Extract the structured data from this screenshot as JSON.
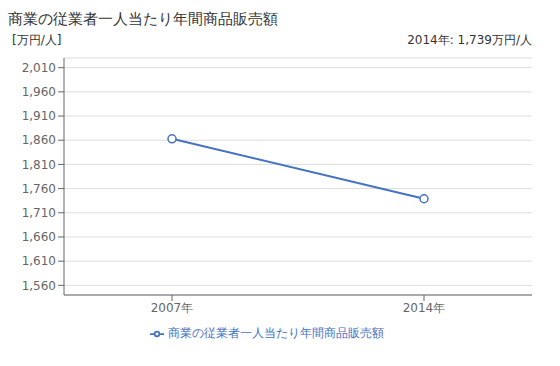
{
  "chart_data": {
    "type": "line",
    "title": "商業の従業者一人当たり年間商品販売額",
    "ylabel": "[万円/人]",
    "annotation": "2014年: 1,739万円/人",
    "x": [
      2007,
      2014
    ],
    "series": [
      {
        "name": "商業の従業者一人当たり年間商品販売額",
        "color": "#4472C4",
        "marker": "circle",
        "values": [
          1863,
          1739
        ]
      }
    ],
    "xlim": [
      2004,
      2017
    ],
    "xticks": [
      {
        "value": 2007,
        "label": "2007年"
      },
      {
        "value": 2014,
        "label": "2014年"
      }
    ],
    "ylim": [
      1540,
      2030
    ],
    "yticks": [
      {
        "value": 1560,
        "label": "1,560"
      },
      {
        "value": 1610,
        "label": "1,610"
      },
      {
        "value": 1660,
        "label": "1,660"
      },
      {
        "value": 1710,
        "label": "1,710"
      },
      {
        "value": 1760,
        "label": "1,760"
      },
      {
        "value": 1810,
        "label": "1,810"
      },
      {
        "value": 1860,
        "label": "1,860"
      },
      {
        "value": 1910,
        "label": "1,910"
      },
      {
        "value": 1960,
        "label": "1,960"
      },
      {
        "value": 2010,
        "label": "2,010"
      }
    ],
    "grid": true,
    "legend": "bottom"
  }
}
